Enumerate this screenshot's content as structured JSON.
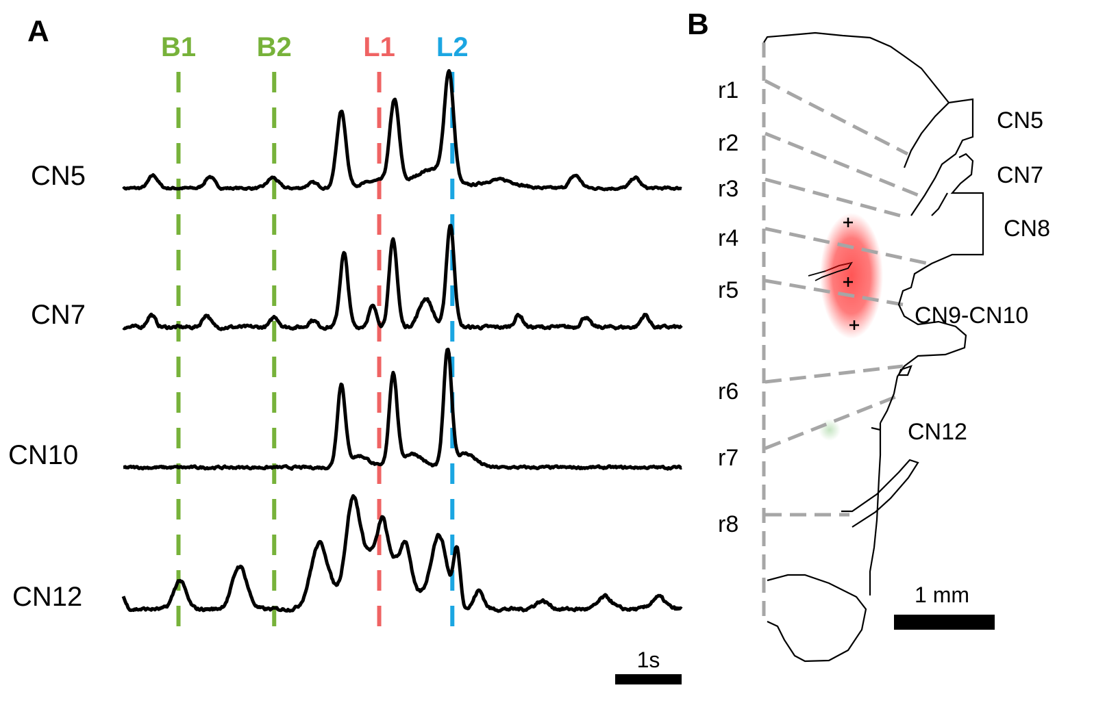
{
  "panels": {
    "a": {
      "letter": "A"
    },
    "b": {
      "letter": "B"
    }
  },
  "colors": {
    "trace": "#000000",
    "b_markers": "#77b23a",
    "l1_marker": "#ef6363",
    "l2_marker": "#1ba6e2",
    "rhombomere_lines": "#a6a6a6",
    "outline": "#000000",
    "hotspot": "#ff4d4d",
    "faint_spot": "#9fd39a"
  },
  "chart_data": {
    "type": "line",
    "title": "",
    "xlabel": "",
    "ylabel": "",
    "x_unit": "s",
    "xlim": [
      0,
      8.4
    ],
    "scale_bar": {
      "label": "1s",
      "length_s": 1
    },
    "markers": [
      {
        "name": "B1",
        "t": 0.83,
        "color_key": "b_markers"
      },
      {
        "name": "B2",
        "t": 2.27,
        "color_key": "b_markers"
      },
      {
        "name": "L1",
        "t": 3.85,
        "color_key": "l1_marker"
      },
      {
        "name": "L2",
        "t": 4.95,
        "color_key": "l2_marker"
      }
    ],
    "series": [
      {
        "name": "CN5",
        "baseline": 0.0,
        "noise": 0.02,
        "bumps": [
          {
            "t": 0.45,
            "a": 0.12,
            "w": 0.07
          },
          {
            "t": 1.3,
            "a": 0.11,
            "w": 0.07
          },
          {
            "t": 2.25,
            "a": 0.1,
            "w": 0.08
          },
          {
            "t": 2.85,
            "a": 0.05,
            "w": 0.08
          },
          {
            "t": 3.28,
            "a": 0.72,
            "w": 0.07
          },
          {
            "t": 3.85,
            "a": 0.07,
            "w": 0.25
          },
          {
            "t": 4.08,
            "a": 0.78,
            "w": 0.07
          },
          {
            "t": 4.65,
            "a": 0.18,
            "w": 0.25
          },
          {
            "t": 4.9,
            "a": 1.0,
            "w": 0.07
          },
          {
            "t": 5.65,
            "a": 0.08,
            "w": 0.25
          },
          {
            "t": 6.8,
            "a": 0.12,
            "w": 0.08
          },
          {
            "t": 7.7,
            "a": 0.1,
            "w": 0.07
          }
        ]
      },
      {
        "name": "CN7",
        "baseline": 0.0,
        "noise": 0.03,
        "bumps": [
          {
            "t": 0.42,
            "a": 0.12,
            "w": 0.06
          },
          {
            "t": 1.25,
            "a": 0.12,
            "w": 0.06
          },
          {
            "t": 2.28,
            "a": 0.1,
            "w": 0.06
          },
          {
            "t": 2.85,
            "a": 0.07,
            "w": 0.06
          },
          {
            "t": 3.32,
            "a": 0.72,
            "w": 0.06
          },
          {
            "t": 3.75,
            "a": 0.2,
            "w": 0.06
          },
          {
            "t": 4.06,
            "a": 0.85,
            "w": 0.06
          },
          {
            "t": 4.55,
            "a": 0.28,
            "w": 0.1
          },
          {
            "t": 4.92,
            "a": 1.0,
            "w": 0.06
          },
          {
            "t": 5.95,
            "a": 0.12,
            "w": 0.06
          },
          {
            "t": 6.95,
            "a": 0.1,
            "w": 0.06
          },
          {
            "t": 7.85,
            "a": 0.12,
            "w": 0.06
          }
        ]
      },
      {
        "name": "CN10",
        "baseline": 0.0,
        "noise": 0.02,
        "bumps": [
          {
            "t": 3.28,
            "a": 0.7,
            "w": 0.06
          },
          {
            "t": 3.55,
            "a": 0.1,
            "w": 0.15
          },
          {
            "t": 4.06,
            "a": 0.8,
            "w": 0.06
          },
          {
            "t": 4.35,
            "a": 0.12,
            "w": 0.15
          },
          {
            "t": 4.88,
            "a": 1.0,
            "w": 0.06
          },
          {
            "t": 5.15,
            "a": 0.12,
            "w": 0.15
          }
        ]
      },
      {
        "name": "CN12",
        "baseline": 0.0,
        "noise": 0.03,
        "bumps": [
          {
            "t": -0.05,
            "a": 0.18,
            "w": 0.06
          },
          {
            "t": 0.85,
            "a": 0.28,
            "w": 0.09
          },
          {
            "t": 1.75,
            "a": 0.42,
            "w": 0.11
          },
          {
            "t": 2.95,
            "a": 0.62,
            "w": 0.13
          },
          {
            "t": 3.45,
            "a": 0.78,
            "w": 0.1
          },
          {
            "t": 3.85,
            "a": 0.6,
            "w": 0.35
          },
          {
            "t": 3.9,
            "a": 0.3,
            "w": 0.06
          },
          {
            "t": 4.25,
            "a": 0.35,
            "w": 0.07
          },
          {
            "t": 4.75,
            "a": 0.7,
            "w": 0.12
          },
          {
            "t": 5.02,
            "a": 0.55,
            "w": 0.05
          },
          {
            "t": 5.35,
            "a": 0.18,
            "w": 0.07
          },
          {
            "t": 6.3,
            "a": 0.08,
            "w": 0.1
          },
          {
            "t": 7.25,
            "a": 0.12,
            "w": 0.1
          },
          {
            "t": 8.05,
            "a": 0.12,
            "w": 0.1
          }
        ]
      }
    ]
  },
  "diagram": {
    "rhombomeres": [
      "r1",
      "r2",
      "r3",
      "r4",
      "r5",
      "r6",
      "r7",
      "r8"
    ],
    "nerves": [
      "CN5",
      "CN7",
      "CN8",
      "CN9-CN10",
      "CN12"
    ],
    "stimulation_sites": 3,
    "scale_bar": {
      "label": "1 mm",
      "length_mm": 1
    }
  }
}
